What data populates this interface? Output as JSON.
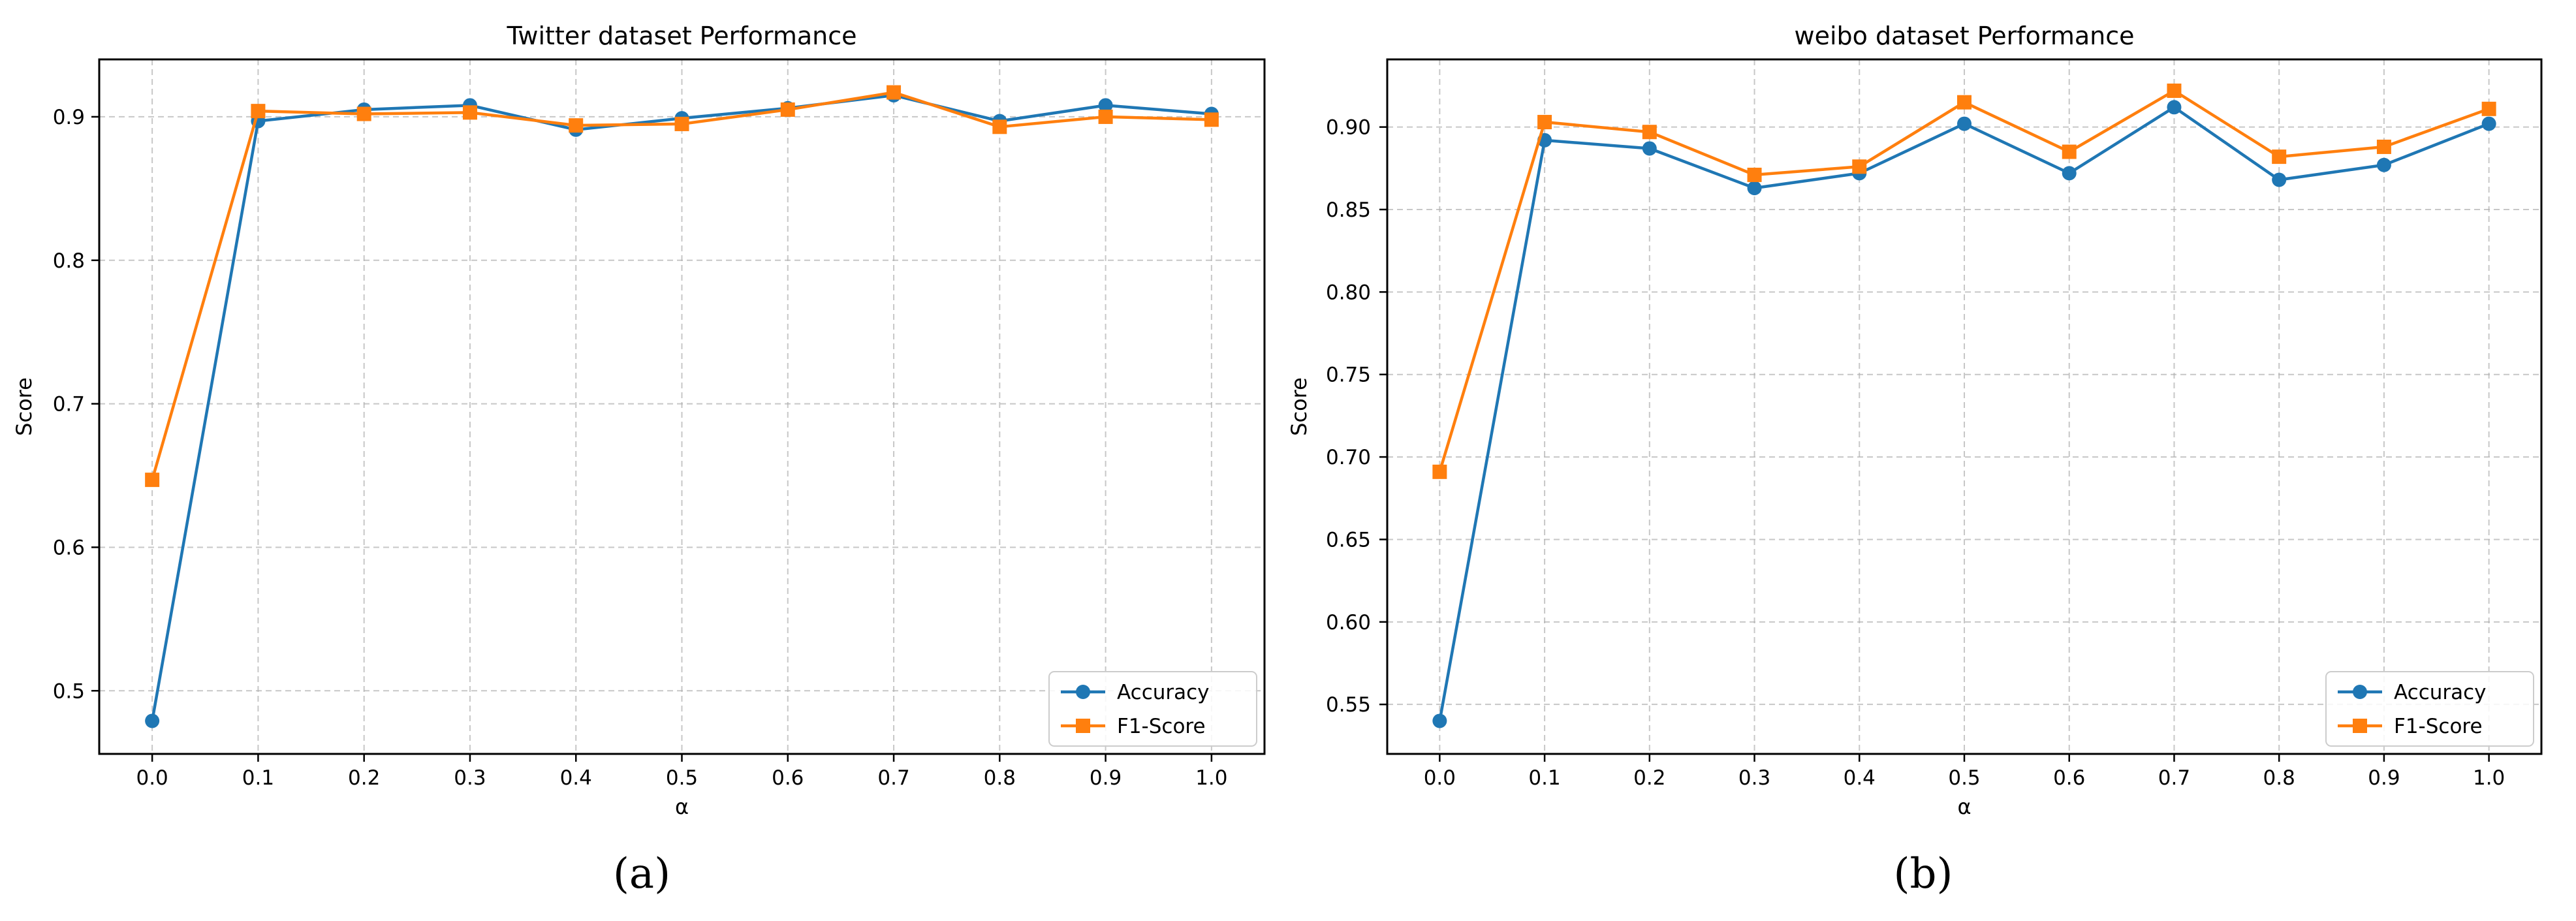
{
  "colors": {
    "accuracy": "#1f77b4",
    "f1": "#ff7f0e",
    "grid": "#b0b0b0"
  },
  "chart_data": [
    {
      "type": "line",
      "title": "Twitter dataset Performance",
      "xlabel": "α",
      "ylabel": "Score",
      "x": [
        0.0,
        0.1,
        0.2,
        0.3,
        0.4,
        0.5,
        0.6,
        0.7,
        0.8,
        0.9,
        1.0
      ],
      "xtick_labels": [
        "0.0",
        "0.1",
        "0.2",
        "0.3",
        "0.4",
        "0.5",
        "0.6",
        "0.7",
        "0.8",
        "0.9",
        "1.0"
      ],
      "yticks": [
        0.5,
        0.6,
        0.7,
        0.8,
        0.9
      ],
      "ytick_labels": [
        "0.5",
        "0.6",
        "0.7",
        "0.8",
        "0.9"
      ],
      "xlim": [
        -0.05,
        1.05
      ],
      "ylim": [
        0.456,
        0.94
      ],
      "grid": true,
      "legend": "lower-right",
      "series": [
        {
          "name": "Accuracy",
          "marker": "circle",
          "values": [
            0.479,
            0.897,
            0.905,
            0.908,
            0.891,
            0.899,
            0.906,
            0.915,
            0.897,
            0.908,
            0.902
          ]
        },
        {
          "name": "F1-Score",
          "marker": "square",
          "values": [
            0.647,
            0.904,
            0.902,
            0.903,
            0.894,
            0.895,
            0.905,
            0.917,
            0.893,
            0.9,
            0.898
          ]
        }
      ],
      "caption": "(a)"
    },
    {
      "type": "line",
      "title": "weibo dataset Performance",
      "xlabel": "α",
      "ylabel": "Score",
      "x": [
        0.0,
        0.1,
        0.2,
        0.3,
        0.4,
        0.5,
        0.6,
        0.7,
        0.8,
        0.9,
        1.0
      ],
      "xtick_labels": [
        "0.0",
        "0.1",
        "0.2",
        "0.3",
        "0.4",
        "0.5",
        "0.6",
        "0.7",
        "0.8",
        "0.9",
        "1.0"
      ],
      "yticks": [
        0.55,
        0.6,
        0.65,
        0.7,
        0.75,
        0.8,
        0.85,
        0.9
      ],
      "ytick_labels": [
        "0.55",
        "0.60",
        "0.65",
        "0.70",
        "0.75",
        "0.80",
        "0.85",
        "0.90"
      ],
      "xlim": [
        -0.05,
        1.05
      ],
      "ylim": [
        0.52,
        0.941
      ],
      "grid": true,
      "legend": "lower-right",
      "series": [
        {
          "name": "Accuracy",
          "marker": "circle",
          "values": [
            0.54,
            0.892,
            0.887,
            0.863,
            0.872,
            0.902,
            0.872,
            0.912,
            0.868,
            0.877,
            0.902
          ]
        },
        {
          "name": "F1-Score",
          "marker": "square",
          "values": [
            0.691,
            0.903,
            0.897,
            0.871,
            0.876,
            0.915,
            0.885,
            0.922,
            0.882,
            0.888,
            0.911
          ]
        }
      ],
      "caption": "(b)"
    }
  ]
}
